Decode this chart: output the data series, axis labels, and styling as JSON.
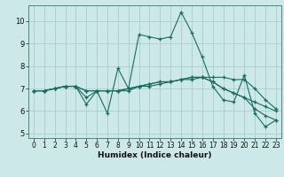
{
  "title": "",
  "xlabel": "Humidex (Indice chaleur)",
  "bg_color": "#cce8e8",
  "grid_color": "#aacccc",
  "line_color": "#1a6b60",
  "xlim": [
    -0.5,
    23.5
  ],
  "ylim": [
    4.8,
    10.7
  ],
  "yticks": [
    5,
    6,
    7,
    8,
    9,
    10
  ],
  "xticks": [
    0,
    1,
    2,
    3,
    4,
    5,
    6,
    7,
    8,
    9,
    10,
    11,
    12,
    13,
    14,
    15,
    16,
    17,
    18,
    19,
    20,
    21,
    22,
    23
  ],
  "series": [
    [
      6.9,
      6.9,
      7.0,
      7.1,
      7.1,
      6.3,
      6.9,
      5.9,
      7.9,
      7.0,
      9.4,
      9.3,
      9.2,
      9.3,
      10.4,
      9.5,
      8.4,
      7.1,
      6.5,
      6.4,
      7.6,
      5.9,
      5.3,
      5.6
    ],
    [
      6.9,
      6.9,
      7.0,
      7.1,
      7.1,
      6.6,
      6.9,
      6.9,
      6.9,
      6.9,
      7.1,
      7.1,
      7.2,
      7.3,
      7.4,
      7.4,
      7.5,
      7.5,
      7.5,
      7.4,
      7.4,
      7.0,
      6.5,
      6.1
    ],
    [
      6.9,
      6.9,
      7.0,
      7.1,
      7.1,
      6.9,
      6.9,
      6.9,
      6.9,
      7.0,
      7.1,
      7.2,
      7.3,
      7.3,
      7.4,
      7.5,
      7.5,
      7.3,
      7.0,
      6.8,
      6.6,
      6.4,
      6.2,
      6.0
    ],
    [
      6.9,
      6.9,
      7.0,
      7.1,
      7.1,
      6.9,
      6.9,
      6.9,
      6.9,
      7.0,
      7.1,
      7.2,
      7.3,
      7.3,
      7.4,
      7.5,
      7.5,
      7.3,
      7.0,
      6.8,
      6.6,
      6.1,
      5.8,
      5.6
    ]
  ],
  "tick_fontsize": 5.5,
  "xlabel_fontsize": 6.5
}
